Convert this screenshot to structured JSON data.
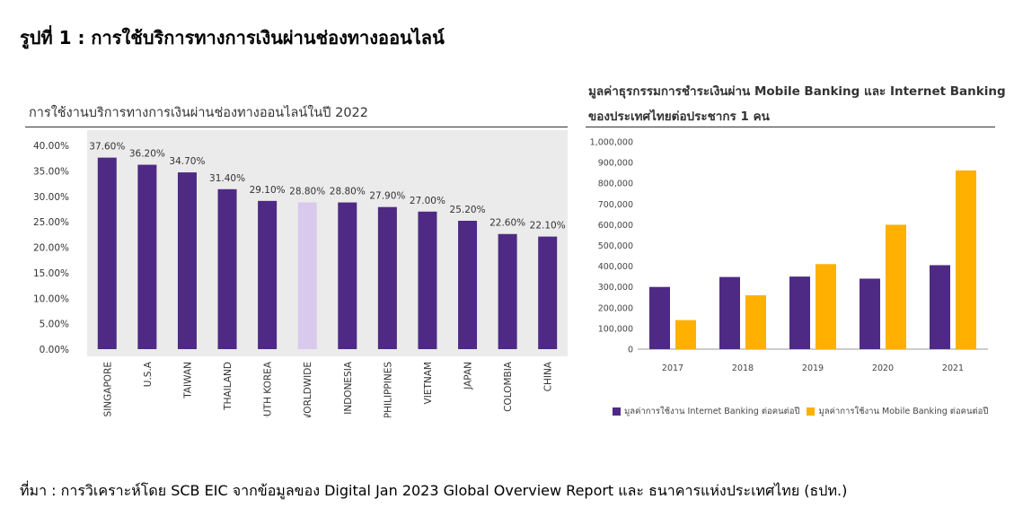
{
  "figure_title": "รูปที่ 1 : การใช้บริการทางการเงินผ่านช่องทางออนไลน์",
  "source_note": "ที่มา : การวิเคราะห์โดย SCB EIC จากข้อมูลของ Digital Jan 2023 Global Overview Report และ ธนาคารแห่งประเทศไทย (ธปท.)",
  "colors": {
    "primary": "#4e2a84",
    "highlight": "#d9c9ec",
    "secondary": "#ffb000",
    "axis": "#333333"
  },
  "chart_data": [
    {
      "type": "bar",
      "title": "การใช้งานบริการทางการเงินผ่านช่องทางออนไลน์ในปี 2022",
      "categories": [
        "SINGAPORE",
        "U.S.A",
        "TAIWAN",
        "THAILAND",
        "SOUTH KOREA",
        "WORLDWIDE",
        "INDONESIA",
        "PHILIPPINES",
        "VIETNAM",
        "JAPAN",
        "COLOMBIA",
        "CHINA"
      ],
      "values": [
        37.6,
        36.2,
        34.7,
        31.4,
        29.1,
        28.8,
        28.8,
        27.9,
        27.0,
        25.2,
        22.6,
        22.1
      ],
      "value_labels": [
        "37.60%",
        "36.20%",
        "34.70%",
        "31.40%",
        "29.10%",
        "28.80%",
        "28.80%",
        "27.90%",
        "27.00%",
        "25.20%",
        "22.60%",
        "22.10%"
      ],
      "highlight_category": "WORLDWIDE",
      "ylim": [
        0,
        40
      ],
      "yticks": [
        "0.00%",
        "5.00%",
        "10.00%",
        "15.00%",
        "20.00%",
        "25.00%",
        "30.00%",
        "35.00%",
        "40.00%"
      ],
      "xlabel": "",
      "ylabel": ""
    },
    {
      "type": "bar",
      "title_lines": [
        "มูลค่าธุรกรรมการชำระเงินผ่าน Mobile Banking และ Internet Banking",
        "ของประเทศไทยต่อประชากร 1 คน"
      ],
      "categories": [
        "2017",
        "2018",
        "2019",
        "2020",
        "2021"
      ],
      "series": [
        {
          "name": "มูลค่าการใช้งาน Internet Banking ต่อคนต่อปี",
          "values": [
            300000,
            348000,
            350000,
            340000,
            405000
          ]
        },
        {
          "name": "มูลค่าการใช้งาน Mobile Banking ต่อคนต่อปี",
          "values": [
            140000,
            260000,
            410000,
            600000,
            862000
          ]
        }
      ],
      "ylim": [
        0,
        1000000
      ],
      "yticks": [
        "0",
        "100,000",
        "200,000",
        "300,000",
        "400,000",
        "500,000",
        "600,000",
        "700,000",
        "800,000",
        "900,000",
        "1,000,000"
      ],
      "legend_position": "bottom",
      "xlabel": "",
      "ylabel": ""
    }
  ]
}
